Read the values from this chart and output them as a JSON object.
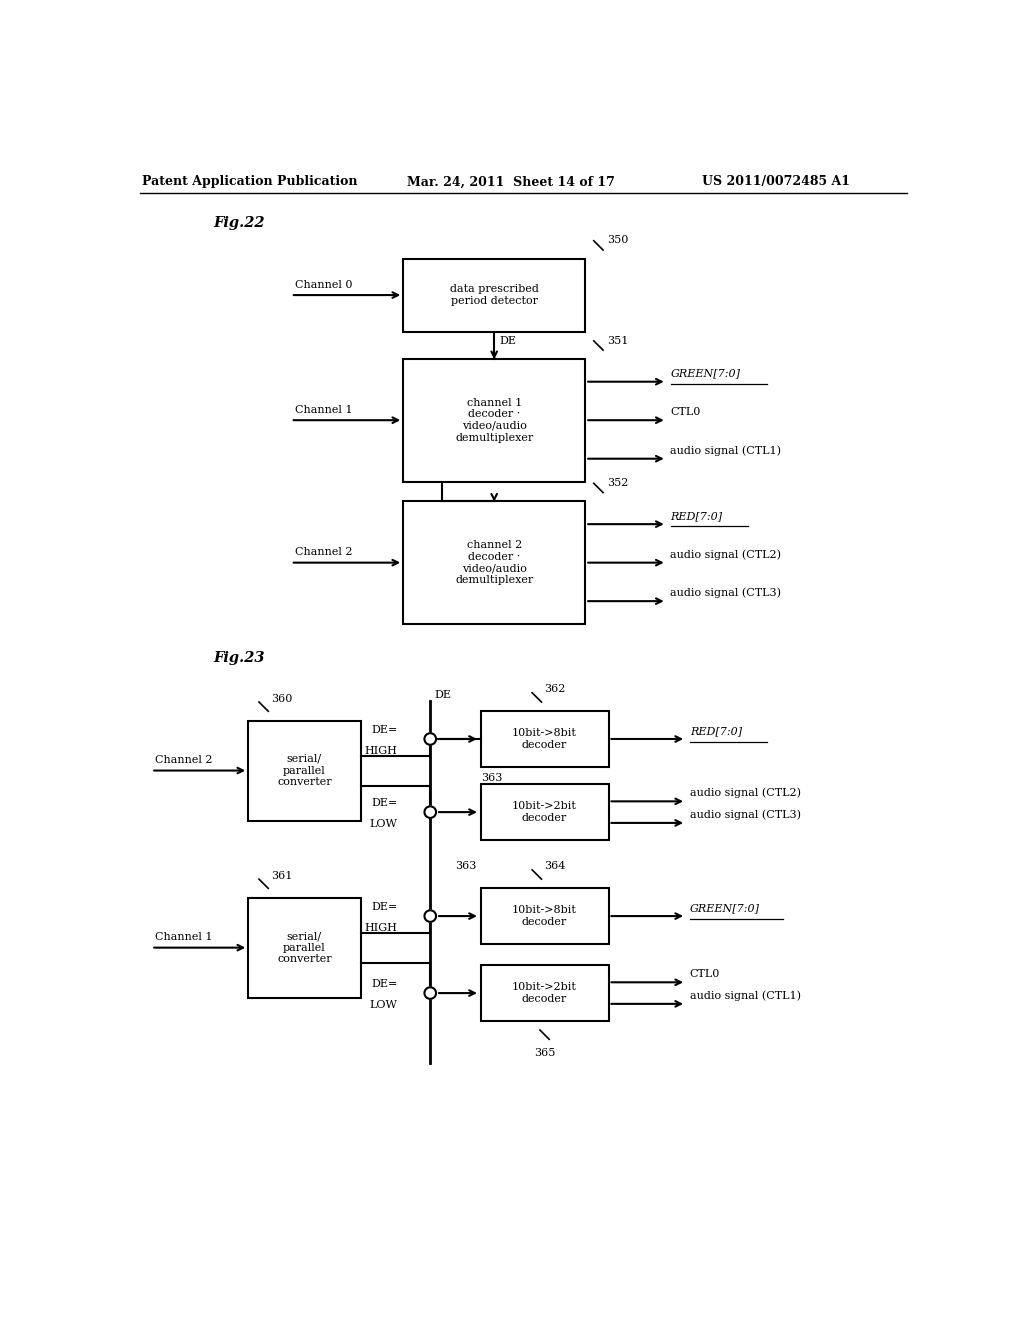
{
  "bg_color": "#ffffff",
  "text_color": "#000000",
  "header_left": "Patent Application Publication",
  "header_mid": "Mar. 24, 2011  Sheet 14 of 17",
  "header_right": "US 2011/0072485 A1",
  "fig22_label": "Fig.22",
  "fig23_label": "Fig.23",
  "fig_width": 10.24,
  "fig_height": 13.2
}
